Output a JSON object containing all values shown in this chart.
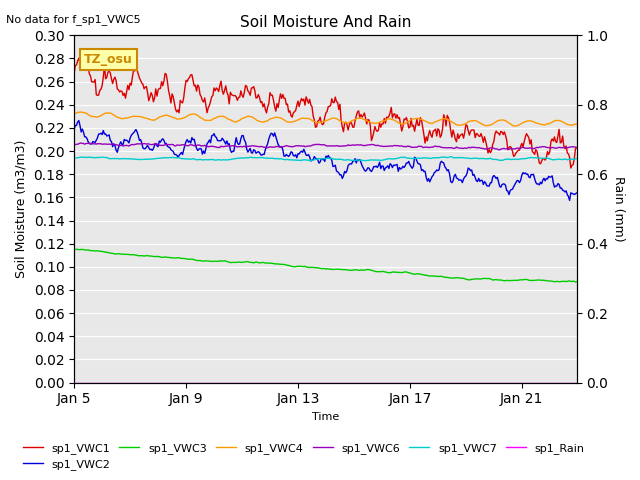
{
  "title": "Soil Moisture And Rain",
  "top_note": "No data for f_sp1_VWC5",
  "xlabel": "Time",
  "ylabel_left": "Soil Moisture (m3/m3)",
  "ylabel_right": "Rain (mm)",
  "ylim_left": [
    0.0,
    0.3
  ],
  "ylim_right": [
    0.0,
    1.0
  ],
  "background_color": "#e8e8e8",
  "figure_bg": "#ffffff",
  "grid_color": "#ffffff",
  "xtick_labels": [
    "Jan 5",
    "Jan 9",
    "Jan 13",
    "Jan 17",
    "Jan 21"
  ],
  "xtick_positions": [
    0,
    96,
    192,
    288,
    384
  ],
  "total_points": 432,
  "annotation_text": "TZ_osu",
  "annotation_color": "#cc8800",
  "annotation_bg": "#ffffaa",
  "series": {
    "sp1_VWC1": {
      "color": "#dd0000",
      "label": "sp1_VWC1"
    },
    "sp1_VWC2": {
      "color": "#0000dd",
      "label": "sp1_VWC2"
    },
    "sp1_VWC3": {
      "color": "#00cc00",
      "label": "sp1_VWC3"
    },
    "sp1_VWC4": {
      "color": "#ff9900",
      "label": "sp1_VWC4"
    },
    "sp1_VWC6": {
      "color": "#9900bb",
      "label": "sp1_VWC6"
    },
    "sp1_VWC7": {
      "color": "#00cccc",
      "label": "sp1_VWC7"
    },
    "sp1_Rain": {
      "color": "#ff00ff",
      "label": "sp1_Rain"
    }
  },
  "legend_ncol": 6,
  "legend_fontsize": 8
}
